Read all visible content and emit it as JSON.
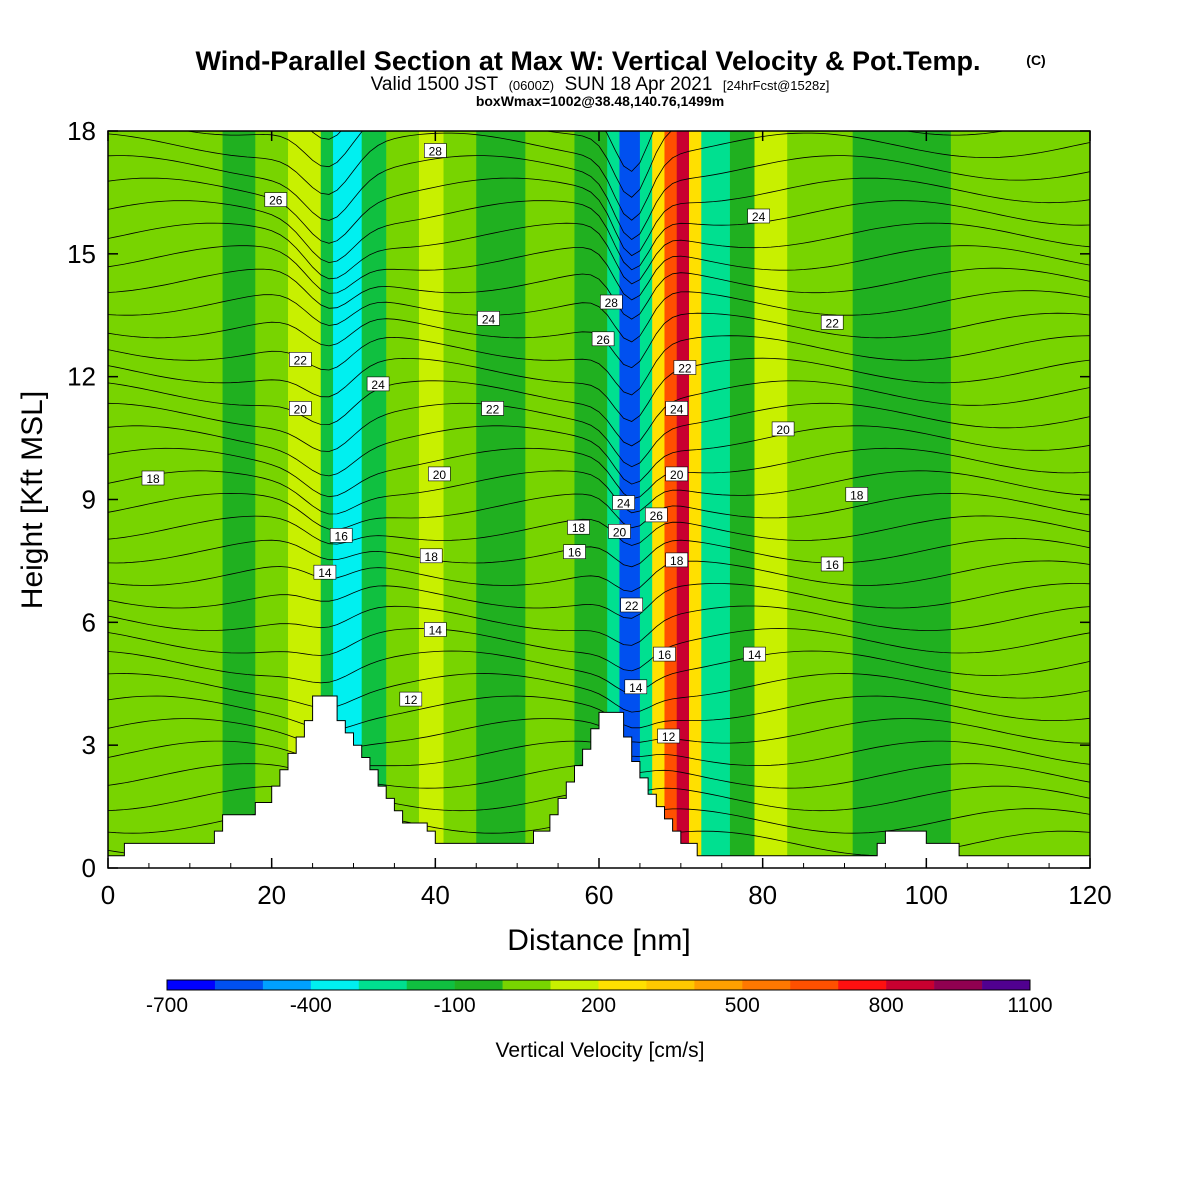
{
  "header": {
    "title": "Wind-Parallel Section at Max W: Vertical Velocity & Pot.Temp.",
    "copyright": "(C)",
    "valid_prefix": "Valid 1500 JST",
    "valid_utc": "(0600Z)",
    "valid_date": "SUN 18 Apr 2021",
    "forecast": "[24hrFcst@1528z]",
    "boxwmax": "boxWmax=1002@38.48,140.76,1499m"
  },
  "chart_data": {
    "type": "heatmap",
    "xlabel": "Distance [nm]",
    "ylabel": "Height [Kft MSL]",
    "xlim": [
      0,
      120
    ],
    "ylim": [
      0,
      18
    ],
    "x_ticks": [
      "0",
      "20",
      "40",
      "60",
      "80",
      "100",
      "120"
    ],
    "y_ticks": [
      "0",
      "3",
      "6",
      "9",
      "12",
      "15",
      "18"
    ],
    "colorbar": {
      "label": "Vertical Velocity [cm/s]",
      "tick_labels": [
        "-700",
        "-400",
        "-100",
        "200",
        "500",
        "800",
        "1100"
      ],
      "levels": [
        -700,
        -600,
        -500,
        -400,
        -300,
        -200,
        -100,
        0,
        100,
        200,
        300,
        400,
        500,
        600,
        700,
        800,
        900,
        1000,
        1100
      ],
      "colors": [
        "#0000ff",
        "#0050f0",
        "#00a0ff",
        "#00f0f0",
        "#00e090",
        "#10c040",
        "#20b020",
        "#78d400",
        "#c8f000",
        "#ffe000",
        "#ffc800",
        "#ffa000",
        "#ff7800",
        "#ff5000",
        "#ff1010",
        "#c80030",
        "#900050",
        "#500090"
      ]
    },
    "vertical_velocity_bands": [
      {
        "x": 0,
        "w": 14,
        "value": 50
      },
      {
        "x": 14,
        "w": 4,
        "value": -50
      },
      {
        "x": 18,
        "w": 4,
        "value": 50
      },
      {
        "x": 22,
        "w": 4,
        "value": 150
      },
      {
        "x": 26,
        "w": 1.5,
        "value": -150
      },
      {
        "x": 27.5,
        "w": 3.5,
        "value": -350
      },
      {
        "x": 31,
        "w": 3,
        "value": -150
      },
      {
        "x": 34,
        "w": 4,
        "value": 50
      },
      {
        "x": 38,
        "w": 3,
        "value": 150
      },
      {
        "x": 41,
        "w": 4,
        "value": 50
      },
      {
        "x": 45,
        "w": 6,
        "value": -50
      },
      {
        "x": 51,
        "w": 6,
        "value": 50
      },
      {
        "x": 57,
        "w": 4,
        "value": -50
      },
      {
        "x": 61,
        "w": 1.5,
        "value": -250
      },
      {
        "x": 62.5,
        "w": 2.5,
        "value": -550
      },
      {
        "x": 65,
        "w": 1.5,
        "value": -250
      },
      {
        "x": 66.5,
        "w": 1.5,
        "value": 250
      },
      {
        "x": 68,
        "w": 1.5,
        "value": 650
      },
      {
        "x": 69.5,
        "w": 1.5,
        "value": 850
      },
      {
        "x": 71,
        "w": 1.5,
        "value": 250
      },
      {
        "x": 72.5,
        "w": 3.5,
        "value": -250
      },
      {
        "x": 76,
        "w": 3,
        "value": -50
      },
      {
        "x": 79,
        "w": 4,
        "value": 150
      },
      {
        "x": 83,
        "w": 8,
        "value": 50
      },
      {
        "x": 91,
        "w": 12,
        "value": -50
      },
      {
        "x": 103,
        "w": 17,
        "value": 50
      }
    ],
    "terrain": [
      [
        0,
        0.3
      ],
      [
        2,
        0.3
      ],
      [
        2,
        0.6
      ],
      [
        13,
        0.6
      ],
      [
        13,
        0.9
      ],
      [
        14,
        0.9
      ],
      [
        14,
        1.3
      ],
      [
        18,
        1.3
      ],
      [
        18,
        1.6
      ],
      [
        20,
        1.6
      ],
      [
        20,
        2.0
      ],
      [
        21,
        2.0
      ],
      [
        21,
        2.4
      ],
      [
        22,
        2.4
      ],
      [
        22,
        2.8
      ],
      [
        23,
        2.8
      ],
      [
        23,
        3.2
      ],
      [
        24,
        3.2
      ],
      [
        24,
        3.6
      ],
      [
        25,
        3.6
      ],
      [
        25,
        4.2
      ],
      [
        28,
        4.2
      ],
      [
        28,
        3.6
      ],
      [
        29,
        3.6
      ],
      [
        29,
        3.3
      ],
      [
        30,
        3.3
      ],
      [
        30,
        3.0
      ],
      [
        31,
        3.0
      ],
      [
        31,
        2.7
      ],
      [
        32,
        2.7
      ],
      [
        32,
        2.4
      ],
      [
        33,
        2.4
      ],
      [
        33,
        2.0
      ],
      [
        34,
        2.0
      ],
      [
        34,
        1.7
      ],
      [
        35,
        1.7
      ],
      [
        35,
        1.4
      ],
      [
        36,
        1.4
      ],
      [
        36,
        1.1
      ],
      [
        39,
        1.1
      ],
      [
        39,
        0.9
      ],
      [
        40,
        0.9
      ],
      [
        40,
        0.6
      ],
      [
        52,
        0.6
      ],
      [
        52,
        0.9
      ],
      [
        54,
        0.9
      ],
      [
        54,
        1.3
      ],
      [
        55,
        1.3
      ],
      [
        55,
        1.7
      ],
      [
        56,
        1.7
      ],
      [
        56,
        2.1
      ],
      [
        57,
        2.1
      ],
      [
        57,
        2.5
      ],
      [
        58,
        2.5
      ],
      [
        58,
        2.9
      ],
      [
        59,
        2.9
      ],
      [
        59,
        3.4
      ],
      [
        60,
        3.4
      ],
      [
        60,
        3.8
      ],
      [
        63,
        3.8
      ],
      [
        63,
        3.2
      ],
      [
        64,
        3.2
      ],
      [
        64,
        2.6
      ],
      [
        65,
        2.6
      ],
      [
        65,
        2.2
      ],
      [
        66,
        2.2
      ],
      [
        66,
        1.8
      ],
      [
        67,
        1.8
      ],
      [
        67,
        1.5
      ],
      [
        68,
        1.5
      ],
      [
        68,
        1.2
      ],
      [
        69,
        1.2
      ],
      [
        69,
        0.9
      ],
      [
        70,
        0.9
      ],
      [
        70,
        0.6
      ],
      [
        72,
        0.6
      ],
      [
        72,
        0.3
      ],
      [
        94,
        0.3
      ],
      [
        94,
        0.6
      ],
      [
        95,
        0.6
      ],
      [
        95,
        0.9
      ],
      [
        100,
        0.9
      ],
      [
        100,
        0.6
      ],
      [
        104,
        0.6
      ],
      [
        104,
        0.3
      ],
      [
        120,
        0.3
      ]
    ],
    "contour_labels": [
      {
        "text": "18",
        "x": 5.5,
        "y": 9.5
      },
      {
        "text": "26",
        "x": 20.5,
        "y": 16.3
      },
      {
        "text": "28",
        "x": 40,
        "y": 17.5
      },
      {
        "text": "22",
        "x": 23.5,
        "y": 12.4
      },
      {
        "text": "20",
        "x": 23.5,
        "y": 11.2
      },
      {
        "text": "24",
        "x": 33,
        "y": 11.8
      },
      {
        "text": "24",
        "x": 46.5,
        "y": 13.4
      },
      {
        "text": "22",
        "x": 47,
        "y": 11.2
      },
      {
        "text": "20",
        "x": 40.5,
        "y": 9.6
      },
      {
        "text": "18",
        "x": 39.5,
        "y": 7.6
      },
      {
        "text": "16",
        "x": 28.5,
        "y": 8.1
      },
      {
        "text": "14",
        "x": 26.5,
        "y": 7.2
      },
      {
        "text": "14",
        "x": 40,
        "y": 5.8
      },
      {
        "text": "12",
        "x": 37,
        "y": 4.1
      },
      {
        "text": "28",
        "x": 61.5,
        "y": 13.8
      },
      {
        "text": "26",
        "x": 60.5,
        "y": 12.9
      },
      {
        "text": "18",
        "x": 57.5,
        "y": 8.3
      },
      {
        "text": "16",
        "x": 57,
        "y": 7.7
      },
      {
        "text": "24",
        "x": 63,
        "y": 8.9
      },
      {
        "text": "20",
        "x": 62.5,
        "y": 8.2
      },
      {
        "text": "26",
        "x": 67,
        "y": 8.6
      },
      {
        "text": "22",
        "x": 64,
        "y": 6.4
      },
      {
        "text": "14",
        "x": 64.5,
        "y": 4.4
      },
      {
        "text": "12",
        "x": 68.5,
        "y": 3.2
      },
      {
        "text": "22",
        "x": 70.5,
        "y": 12.2
      },
      {
        "text": "24",
        "x": 69.5,
        "y": 11.2
      },
      {
        "text": "20",
        "x": 69.5,
        "y": 9.6
      },
      {
        "text": "18",
        "x": 69.5,
        "y": 7.5
      },
      {
        "text": "16",
        "x": 68,
        "y": 5.2
      },
      {
        "text": "24",
        "x": 79.5,
        "y": 15.9
      },
      {
        "text": "22",
        "x": 88.5,
        "y": 13.3
      },
      {
        "text": "20",
        "x": 82.5,
        "y": 10.7
      },
      {
        "text": "18",
        "x": 91.5,
        "y": 9.1
      },
      {
        "text": "16",
        "x": 88.5,
        "y": 7.4
      },
      {
        "text": "14",
        "x": 79,
        "y": 5.2
      }
    ]
  }
}
